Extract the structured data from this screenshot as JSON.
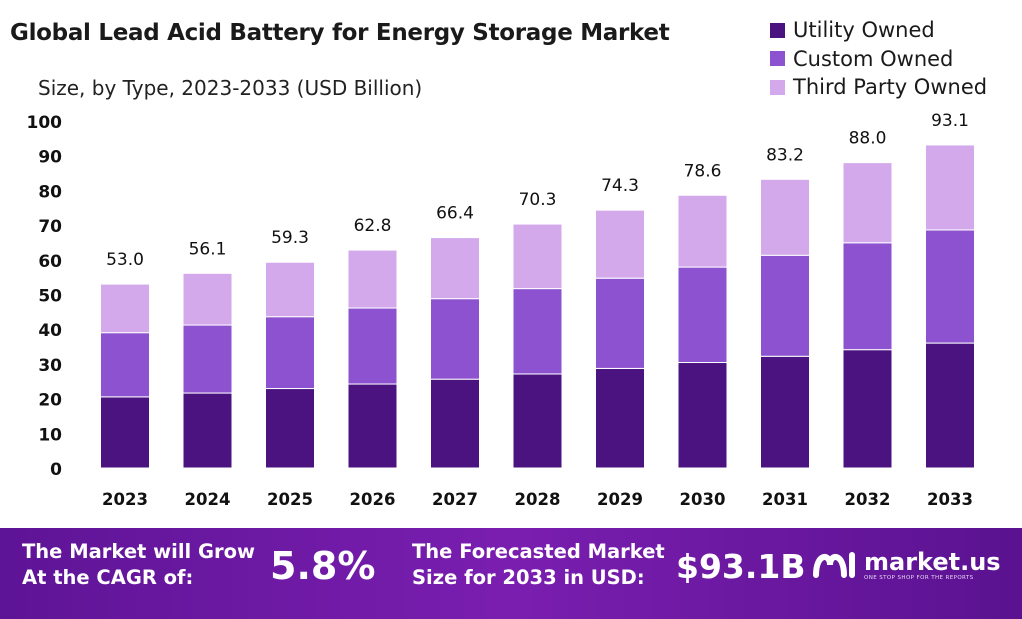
{
  "chart_data": {
    "type": "bar",
    "stacked": true,
    "title": "Global Lead Acid Battery for Energy Storage Market",
    "subtitle": "Size, by Type, 2023-2033 (USD Billion)",
    "categories": [
      "2023",
      "2024",
      "2025",
      "2026",
      "2027",
      "2028",
      "2029",
      "2030",
      "2031",
      "2032",
      "2033"
    ],
    "totals": [
      "53.0",
      "56.1",
      "59.3",
      "62.8",
      "66.4",
      "70.3",
      "74.3",
      "78.6",
      "83.2",
      "88.0",
      "93.1"
    ],
    "series": [
      {
        "name": "Utility Owned",
        "color": "#4a1380",
        "values": [
          20.5,
          21.6,
          22.9,
          24.2,
          25.6,
          27.1,
          28.7,
          30.4,
          32.2,
          34.1,
          36.0
        ]
      },
      {
        "name": "Custom Owned",
        "color": "#8c52cf",
        "values": [
          18.5,
          19.6,
          20.7,
          21.9,
          23.2,
          24.6,
          26.0,
          27.5,
          29.1,
          30.8,
          32.6
        ]
      },
      {
        "name": "Third Party Owned",
        "color": "#d3a9ec",
        "values": [
          14.0,
          14.9,
          15.7,
          16.7,
          17.6,
          18.6,
          19.6,
          20.7,
          21.9,
          23.1,
          24.5
        ]
      }
    ],
    "ylim": [
      0,
      100
    ],
    "yticks": [
      "0",
      "10",
      "20",
      "30",
      "40",
      "50",
      "60",
      "70",
      "80",
      "90",
      "100"
    ],
    "grid": false,
    "legend_position": "top-right"
  },
  "banner": {
    "cagr_label_line1": "The Market will Grow",
    "cagr_label_line2": "At the CAGR of:",
    "cagr_value": "5.8%",
    "forecast_label_line1": "The Forecasted Market",
    "forecast_label_line2": "Size for 2033 in USD:",
    "forecast_value": "$93.1B",
    "brand_name": "market.us",
    "brand_tagline": "ONE STOP SHOP FOR THE REPORTS",
    "background_color": "#6a18a4"
  }
}
